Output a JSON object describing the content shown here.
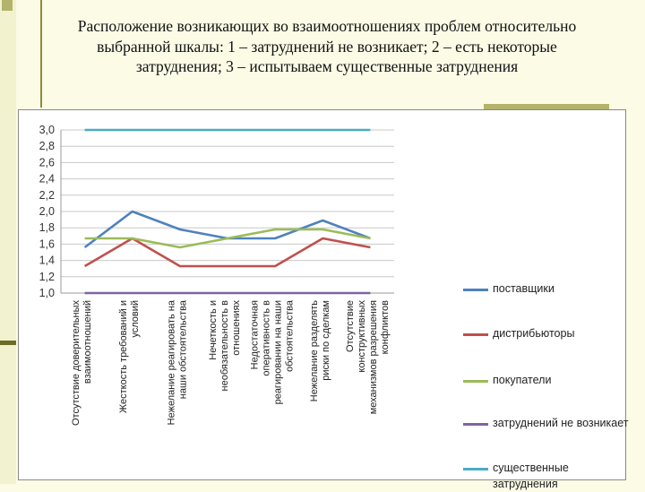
{
  "slide": {
    "title": "Расположение возникающих во взаимоотношениях проблем относительно выбранной шкалы: 1 – затруднений не возникает; 2 – есть некоторые затруднения; 3 – испытываем существенные затруднения"
  },
  "colors": {
    "background": "#fbfbe6",
    "accent": "#8c8c40"
  },
  "chart_data": {
    "type": "line",
    "title": "",
    "xlabel": "",
    "ylabel": "",
    "ylim": [
      1.0,
      3.0
    ],
    "yticks": [
      "1,0",
      "1,2",
      "1,4",
      "1,6",
      "1,8",
      "2,0",
      "2,2",
      "2,4",
      "2,6",
      "2,8",
      "3,0"
    ],
    "grid": true,
    "legend_position": "right",
    "categories": [
      "Отсутствие доверительных взаимоотношений",
      "Жесткость требований и условий",
      "Нежелание реагировать на наши обстоятельства",
      "Нечеткость и необязательность в отношениях",
      "Недостаточная оперативность в реагировании на наши обстоятельства",
      "Нежелание разделять риски по сделкам",
      "Отсутствие конструктивных механизмов разрешения конфликтов"
    ],
    "series": [
      {
        "name": "поставщики",
        "color": "#4f81bd",
        "values": [
          1.56,
          2.0,
          1.78,
          1.67,
          1.67,
          1.89,
          1.67
        ]
      },
      {
        "name": "дистрибьюторы",
        "color": "#c0504d",
        "values": [
          1.33,
          1.67,
          1.33,
          1.33,
          1.33,
          1.67,
          1.56
        ]
      },
      {
        "name": "покупатели",
        "color": "#9bbb59",
        "values": [
          1.67,
          1.67,
          1.56,
          1.67,
          1.78,
          1.78,
          1.67
        ]
      },
      {
        "name": "затруднений не возникает",
        "color": "#8064a2",
        "values": [
          1.0,
          1.0,
          1.0,
          1.0,
          1.0,
          1.0,
          1.0
        ]
      },
      {
        "name": "существенные затруднения",
        "color": "#4bacc6",
        "values": [
          3.0,
          3.0,
          3.0,
          3.0,
          3.0,
          3.0,
          3.0
        ]
      }
    ]
  }
}
